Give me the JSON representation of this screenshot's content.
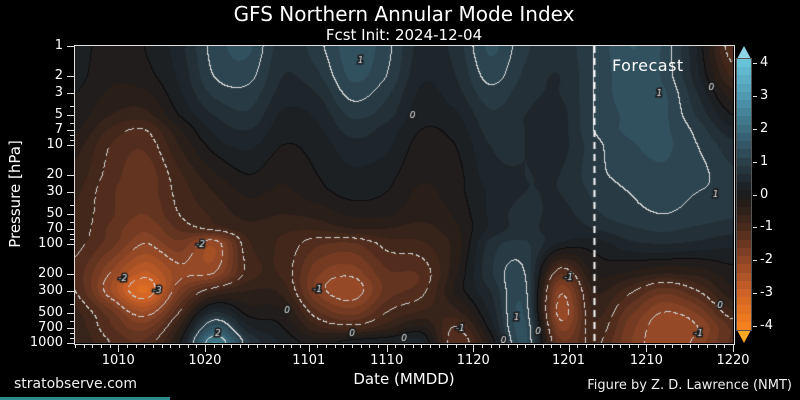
{
  "header": {
    "title": "GFS Northern Annular Mode Index",
    "subtitle": "Fcst Init: 2024-12-04"
  },
  "footer": {
    "left": "stratobserve.com",
    "right": "Figure by Z. D. Lawrence (NMT)",
    "brand_bar_color": "#2d8c8c"
  },
  "plot": {
    "xlabel": "Date (MMDD)",
    "ylabel": "Pressure [hPa]",
    "forecast_label": "Forecast",
    "days_total": 76,
    "forecast_day": 60,
    "x_ticks": [
      {
        "label": "1010",
        "day": 5
      },
      {
        "label": "1020",
        "day": 15
      },
      {
        "label": "1101",
        "day": 27
      },
      {
        "label": "1110",
        "day": 36
      },
      {
        "label": "1120",
        "day": 46
      },
      {
        "label": "1201",
        "day": 57
      },
      {
        "label": "1210",
        "day": 66
      },
      {
        "label": "1220",
        "day": 76
      }
    ],
    "y_ticks": [
      {
        "label": "1",
        "p": 1
      },
      {
        "label": "2",
        "p": 2
      },
      {
        "label": "3",
        "p": 3
      },
      {
        "label": "5",
        "p": 5
      },
      {
        "label": "7",
        "p": 7
      },
      {
        "label": "10",
        "p": 10
      },
      {
        "label": "20",
        "p": 20
      },
      {
        "label": "30",
        "p": 30
      },
      {
        "label": "50",
        "p": 50
      },
      {
        "label": "70",
        "p": 70
      },
      {
        "label": "100",
        "p": 100
      },
      {
        "label": "200",
        "p": 200
      },
      {
        "label": "300",
        "p": 300
      },
      {
        "label": "500",
        "p": 500
      },
      {
        "label": "700",
        "p": 700
      },
      {
        "label": "1000",
        "p": 1000
      }
    ],
    "y_minor": [
      4,
      6,
      8,
      9,
      40,
      60,
      80,
      90,
      400,
      600,
      800,
      900
    ]
  },
  "colorbar": {
    "ticks": [
      "4",
      "3",
      "2",
      "1",
      "0",
      "-1",
      "-2",
      "-3",
      "-4"
    ],
    "over_color": "#8ed4e8",
    "under_color": "#f9a825"
  },
  "chart_data": {
    "type": "heatmap",
    "title": "GFS Northern Annular Mode Index",
    "xlabel": "Date (MMDD)",
    "ylabel": "Pressure [hPa]",
    "x_dates": [
      "1005",
      "1009",
      "1013",
      "1017",
      "1021",
      "1025",
      "1029",
      "1102",
      "1106",
      "1110",
      "1114",
      "1118",
      "1122",
      "1126",
      "1130",
      "1204",
      "1208",
      "1212",
      "1216",
      "1220"
    ],
    "x_day_offsets": [
      0,
      4,
      8,
      12,
      16,
      20,
      24,
      28,
      32,
      36,
      40,
      44,
      48,
      52,
      56,
      60,
      64,
      68,
      72,
      76
    ],
    "forecast_start_date": "1204",
    "pressure_levels": [
      1,
      2,
      3,
      5,
      7,
      10,
      20,
      30,
      50,
      70,
      100,
      200,
      300,
      500,
      700,
      1000
    ],
    "values": [
      [
        0.2,
        -0.2,
        0.0,
        0.4,
        1.1,
        1.3,
        0.6,
        0.9,
        1.4,
        1.1,
        0.4,
        0.6,
        1.3,
        0.8,
        0.6,
        1.0,
        1.5,
        1.2,
        0.2,
        -1.2
      ],
      [
        0.1,
        -0.2,
        -0.1,
        0.3,
        1.0,
        1.1,
        0.5,
        0.7,
        1.3,
        1.0,
        0.3,
        0.5,
        1.1,
        0.7,
        0.5,
        1.0,
        1.4,
        1.2,
        0.3,
        -0.8
      ],
      [
        0.0,
        -0.3,
        -0.3,
        0.2,
        0.8,
        0.9,
        0.4,
        0.5,
        1.1,
        0.8,
        0.2,
        0.4,
        0.9,
        0.6,
        0.5,
        1.0,
        1.4,
        1.3,
        0.5,
        -0.4
      ],
      [
        -0.1,
        -0.5,
        -0.6,
        0.0,
        0.5,
        0.7,
        0.2,
        0.3,
        0.8,
        0.6,
        0.1,
        0.2,
        0.7,
        0.5,
        0.4,
        1.0,
        1.3,
        1.3,
        0.7,
        0.0
      ],
      [
        -0.2,
        -0.8,
        -1.0,
        -0.3,
        0.3,
        0.5,
        0.1,
        0.2,
        0.6,
        0.4,
        0.0,
        0.1,
        0.6,
        0.5,
        0.4,
        1.0,
        1.3,
        1.3,
        0.9,
        0.3
      ],
      [
        -0.4,
        -1.0,
        -1.2,
        -0.5,
        0.1,
        0.3,
        0.0,
        0.1,
        0.4,
        0.3,
        -0.1,
        0.0,
        0.5,
        0.5,
        0.4,
        0.9,
        1.2,
        1.3,
        1.0,
        0.6
      ],
      [
        -0.6,
        -1.1,
        -1.4,
        -0.8,
        -0.3,
        0.0,
        -0.2,
        0.0,
        0.2,
        0.1,
        -0.2,
        -0.1,
        0.4,
        0.5,
        0.5,
        0.9,
        1.1,
        1.2,
        1.1,
        0.8
      ],
      [
        -0.7,
        -1.2,
        -1.4,
        -0.9,
        -0.5,
        -0.2,
        -0.3,
        -0.1,
        0.1,
        0.0,
        -0.3,
        -0.1,
        0.3,
        0.5,
        0.5,
        0.8,
        1.0,
        1.1,
        1.0,
        0.9
      ],
      [
        -0.8,
        -1.2,
        -1.5,
        -1.0,
        -0.7,
        -0.4,
        -0.5,
        -0.4,
        -0.2,
        -0.2,
        -0.4,
        -0.2,
        0.3,
        0.6,
        0.4,
        0.7,
        0.9,
        1.0,
        0.9,
        0.8
      ],
      [
        -0.8,
        -1.3,
        -1.7,
        -1.2,
        -0.9,
        -0.6,
        -0.7,
        -0.7,
        -0.5,
        -0.5,
        -0.6,
        -0.3,
        0.3,
        0.6,
        0.3,
        0.5,
        0.7,
        0.8,
        0.7,
        0.6
      ],
      [
        -0.9,
        -1.4,
        -2.0,
        -1.6,
        -2.2,
        -0.8,
        -0.8,
        -1.2,
        -1.3,
        -0.9,
        -0.8,
        -0.4,
        0.6,
        0.8,
        0.2,
        0.1,
        0.4,
        0.5,
        0.4,
        0.3
      ],
      [
        -1.1,
        -2.0,
        -2.8,
        -2.1,
        -2.0,
        -0.9,
        -0.8,
        -1.7,
        -1.9,
        -1.3,
        -1.2,
        -0.3,
        0.7,
        1.0,
        -1.2,
        -0.2,
        -0.3,
        -0.5,
        -0.4,
        -0.1
      ],
      [
        -1.0,
        -2.2,
        -3.3,
        -1.7,
        -0.8,
        -0.5,
        -0.6,
        -1.8,
        -2.2,
        -1.4,
        -1.1,
        -0.2,
        0.5,
        1.1,
        -1.9,
        -0.5,
        -0.9,
        -1.4,
        -1.0,
        -0.3
      ],
      [
        -0.7,
        -1.4,
        -2.2,
        -1.0,
        0.5,
        -0.1,
        -0.2,
        -1.2,
        -1.6,
        -1.0,
        -0.7,
        -0.6,
        0.3,
        1.2,
        -2.1,
        -0.7,
        -1.4,
        -2.0,
        -1.7,
        -0.8
      ],
      [
        -0.6,
        -1.2,
        -1.6,
        -0.5,
        1.4,
        0.3,
        0.0,
        -0.7,
        -0.9,
        -0.6,
        -0.2,
        -1.0,
        0.1,
        1.3,
        -1.8,
        -0.8,
        -1.6,
        -2.2,
        -2.0,
        -1.2
      ],
      [
        -0.5,
        -1.0,
        -1.2,
        -0.1,
        2.3,
        0.8,
        0.2,
        -0.1,
        0.1,
        0.2,
        0.3,
        -1.2,
        -0.2,
        1.3,
        -1.4,
        -0.9,
        -1.7,
        -2.2,
        -1.9,
        -1.2
      ]
    ],
    "clim": [
      -4,
      4
    ],
    "fill_interval": 0.25,
    "line_interval": 1,
    "colormap_anchors": [
      [
        -4,
        "#f5801e"
      ],
      [
        -3,
        "#cf6226"
      ],
      [
        -2,
        "#8d4526"
      ],
      [
        -1,
        "#49291c"
      ],
      [
        -0.3,
        "#251d18"
      ],
      [
        0,
        "#1d1d1f"
      ],
      [
        0.3,
        "#1d2327"
      ],
      [
        1,
        "#2a3f4a"
      ],
      [
        2,
        "#3c6e80"
      ],
      [
        3,
        "#4f9ab1"
      ],
      [
        4,
        "#68c2d8"
      ]
    ],
    "contour_labels": [
      {
        "t": "1",
        "day": 33,
        "p": 1.4
      },
      {
        "t": "0",
        "day": 39,
        "p": 5
      },
      {
        "t": "1",
        "day": 67.5,
        "p": 3
      },
      {
        "t": "0",
        "day": 73.5,
        "p": 2.6
      },
      {
        "t": "1",
        "day": 74,
        "p": 31
      },
      {
        "t": "-3",
        "day": 9.5,
        "p": 290
      },
      {
        "t": "-2",
        "day": 14.5,
        "p": 100
      },
      {
        "t": "-2",
        "day": 5.5,
        "p": 220
      },
      {
        "t": "-1",
        "day": 28,
        "p": 285
      },
      {
        "t": "2",
        "day": 16.5,
        "p": 790
      },
      {
        "t": "0",
        "day": 24.5,
        "p": 465
      },
      {
        "t": "0",
        "day": 38,
        "p": 890
      },
      {
        "t": "-1",
        "day": 57,
        "p": 215
      },
      {
        "t": "1",
        "day": 51,
        "p": 545
      },
      {
        "t": "0",
        "day": 49.5,
        "p": 930
      },
      {
        "t": "0",
        "day": 32,
        "p": 790
      },
      {
        "t": "-1",
        "day": 72,
        "p": 790
      },
      {
        "t": "0",
        "day": 74.5,
        "p": 415
      },
      {
        "t": "-1",
        "day": 44.5,
        "p": 705
      },
      {
        "t": "0",
        "day": 53.5,
        "p": 760
      }
    ]
  }
}
